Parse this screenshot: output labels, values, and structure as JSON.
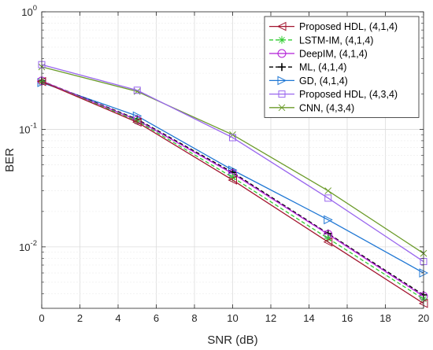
{
  "chart_data": {
    "type": "line",
    "title": "",
    "xlabel": "SNR (dB)",
    "ylabel": "BER",
    "xlim": [
      0,
      20
    ],
    "ylim": [
      0.003,
      1
    ],
    "yscale": "log",
    "grid": true,
    "legend_position": "top-right",
    "x_ticks": [
      0,
      2,
      4,
      6,
      8,
      10,
      12,
      14,
      16,
      18,
      20
    ],
    "x_tick_labels": [
      "0",
      "2",
      "4",
      "6",
      "8",
      "10",
      "12",
      "14",
      "16",
      "18",
      "20"
    ],
    "y_ticks": [
      1,
      0.1,
      0.01
    ],
    "y_tick_labels": [
      {
        "base": "10",
        "exp": "0"
      },
      {
        "base": "10",
        "exp": "-1"
      },
      {
        "base": "10",
        "exp": "-2"
      }
    ],
    "x": [
      0,
      5,
      10,
      15,
      20
    ],
    "series": [
      {
        "name": "Proposed HDL, (4,1,4)",
        "color": "#a2142f",
        "dash": "solid",
        "marker": "triangle-left",
        "values": [
          0.255,
          0.115,
          0.037,
          0.011,
          0.0033
        ]
      },
      {
        "name": "LSTM-IM, (4,1,4)",
        "color": "#33cc33",
        "dash": "dashed",
        "marker": "asterisk",
        "values": [
          0.255,
          0.118,
          0.039,
          0.0118,
          0.0036
        ]
      },
      {
        "name": "DeepIM, (4,1,4)",
        "color": "#b21dd6",
        "dash": "solid",
        "marker": "circle",
        "values": [
          0.258,
          0.12,
          0.042,
          0.0128,
          0.0038
        ]
      },
      {
        "name": "ML, (4,1,4)",
        "color": "#000000",
        "dash": "dashed",
        "marker": "plus",
        "values": [
          0.258,
          0.122,
          0.043,
          0.013,
          0.0039
        ]
      },
      {
        "name": "GD, (4,1,4)",
        "color": "#1f77d4",
        "dash": "solid",
        "marker": "triangle-right",
        "values": [
          0.25,
          0.13,
          0.045,
          0.017,
          0.006
        ]
      },
      {
        "name": "Proposed HDL, (4,3,4)",
        "color": "#9966ee",
        "dash": "solid",
        "marker": "square",
        "values": [
          0.355,
          0.215,
          0.085,
          0.026,
          0.0075
        ]
      },
      {
        "name": "CNN, (4,3,4)",
        "color": "#6b9b2a",
        "dash": "solid",
        "marker": "x",
        "values": [
          0.34,
          0.21,
          0.09,
          0.03,
          0.0088
        ]
      }
    ]
  }
}
